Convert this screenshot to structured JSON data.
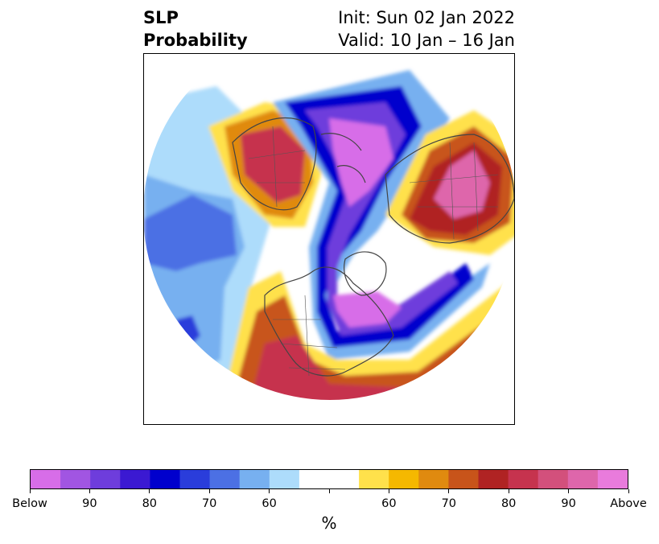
{
  "header": {
    "title_line1": "SLP",
    "title_line2": "Probability",
    "init_text": "Init: Sun 02 Jan 2022",
    "valid_text": "Valid: 10 Jan – 16 Jan"
  },
  "colorbar": {
    "unit_label": "%",
    "colors": [
      "#d76de8",
      "#a155e2",
      "#6e3ddc",
      "#3b19d2",
      "#0000cd",
      "#2a3ddb",
      "#4c70e4",
      "#77b0f0",
      "#addcfb",
      "#ffffff",
      "#ffffff",
      "#ffe14b",
      "#f5b800",
      "#e08a0f",
      "#c8541a",
      "#b02323",
      "#c6334e",
      "#d3507c",
      "#de66ab",
      "#e97bdc"
    ],
    "tick_labels": [
      "Below",
      "90",
      "80",
      "70",
      "60",
      "",
      "60",
      "70",
      "80",
      "90",
      "Above"
    ]
  },
  "map": {
    "projection": "north-polar-stereographic",
    "features": [
      "coastlines",
      "country-borders",
      "state-provinces"
    ]
  }
}
